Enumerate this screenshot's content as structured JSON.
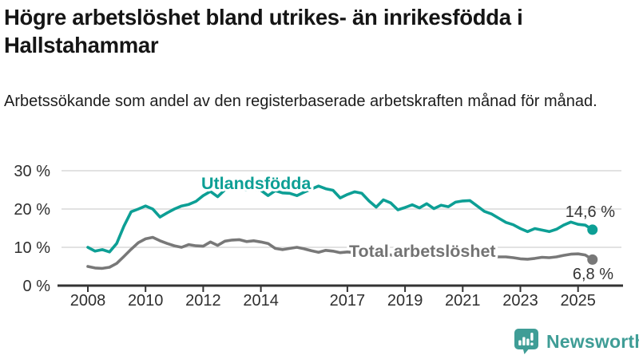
{
  "header": {
    "title": "Högre arbetslöshet bland utrikes- än inrikesfödda i Hallstahammar",
    "subtitle": "Arbetssökande som andel av den registerbaserade arbetskraften månad för månad."
  },
  "footer": {
    "brand": "Newsworthy"
  },
  "colors": {
    "accent_teal": "#0d9f95",
    "series_gray": "#787878",
    "axis": "#333333",
    "grid": "#d8d8d8",
    "label_gray": "#737373",
    "logo_teal": "#3f9d96"
  },
  "chart_data": {
    "type": "line",
    "title": "Högre arbetslöshet bland utrikes- än inrikesfödda i Hallstahammar",
    "subtitle": "Arbetssökande som andel av den registerbaserade arbetskraften månad för månad.",
    "xlabel": "",
    "ylabel": "",
    "grid": "horizontal",
    "xlim": [
      2007.5,
      2026
    ],
    "ylim": [
      0,
      32
    ],
    "x_start": 2008.0,
    "x_step": 0.25,
    "x_ticks": [
      {
        "year": 2008,
        "label": "2008"
      },
      {
        "year": 2010,
        "label": "2010"
      },
      {
        "year": 2012,
        "label": "2012"
      },
      {
        "year": 2014,
        "label": "2014"
      },
      {
        "year": 2017,
        "label": "2017"
      },
      {
        "year": 2019,
        "label": "2019"
      },
      {
        "year": 2021,
        "label": "2021"
      },
      {
        "year": 2023,
        "label": "2023"
      },
      {
        "year": 2025,
        "label": "2025"
      }
    ],
    "y_ticks": [
      {
        "value": 0,
        "label": "0 %"
      },
      {
        "value": 10,
        "label": "10 %"
      },
      {
        "value": 20,
        "label": "20 %"
      },
      {
        "value": 30,
        "label": "30 %"
      }
    ],
    "series": [
      {
        "name": "Utlandsfödda",
        "color": "#0d9f95",
        "end_label": "14,6 %",
        "end_value": 14.6,
        "values": [
          10.0,
          9.0,
          9.4,
          8.8,
          11.0,
          15.5,
          19.3,
          20.0,
          20.8,
          20.0,
          17.9,
          19.0,
          20.0,
          20.8,
          21.2,
          22.0,
          23.5,
          24.6,
          23.2,
          25.0,
          25.4,
          25.9,
          25.0,
          25.3,
          24.9,
          23.5,
          24.8,
          24.2,
          24.1,
          23.5,
          24.4,
          25.2,
          26.0,
          25.3,
          24.9,
          22.9,
          23.8,
          24.5,
          24.1,
          22.1,
          20.5,
          22.4,
          21.6,
          19.8,
          20.4,
          21.1,
          20.3,
          21.4,
          20.1,
          21.0,
          20.6,
          21.8,
          22.1,
          22.2,
          20.8,
          19.4,
          18.7,
          17.6,
          16.5,
          15.9,
          14.9,
          14.1,
          14.9,
          14.5,
          14.1,
          14.7,
          15.8,
          16.6,
          16.0,
          15.8,
          14.6
        ]
      },
      {
        "name": "Total arbetslöshet",
        "color": "#787878",
        "end_label": "6,8 %",
        "end_value": 6.8,
        "values": [
          5.0,
          4.6,
          4.5,
          4.8,
          5.8,
          7.6,
          9.5,
          11.2,
          12.2,
          12.6,
          11.7,
          11.0,
          10.4,
          10.0,
          10.7,
          10.4,
          10.3,
          11.4,
          10.5,
          11.6,
          11.9,
          12.0,
          11.5,
          11.7,
          11.4,
          11.0,
          9.7,
          9.4,
          9.7,
          10.0,
          9.6,
          9.1,
          8.7,
          9.2,
          9.0,
          8.6,
          8.8,
          8.6,
          8.4,
          8.2,
          8.4,
          8.2,
          8.0,
          7.8,
          8.0,
          8.1,
          7.9,
          8.1,
          8.0,
          8.3,
          8.2,
          8.4,
          8.5,
          8.3,
          8.0,
          7.8,
          7.7,
          7.5,
          7.5,
          7.3,
          7.0,
          6.9,
          7.1,
          7.4,
          7.3,
          7.5,
          7.9,
          8.2,
          8.3,
          8.0,
          6.8
        ]
      }
    ]
  }
}
